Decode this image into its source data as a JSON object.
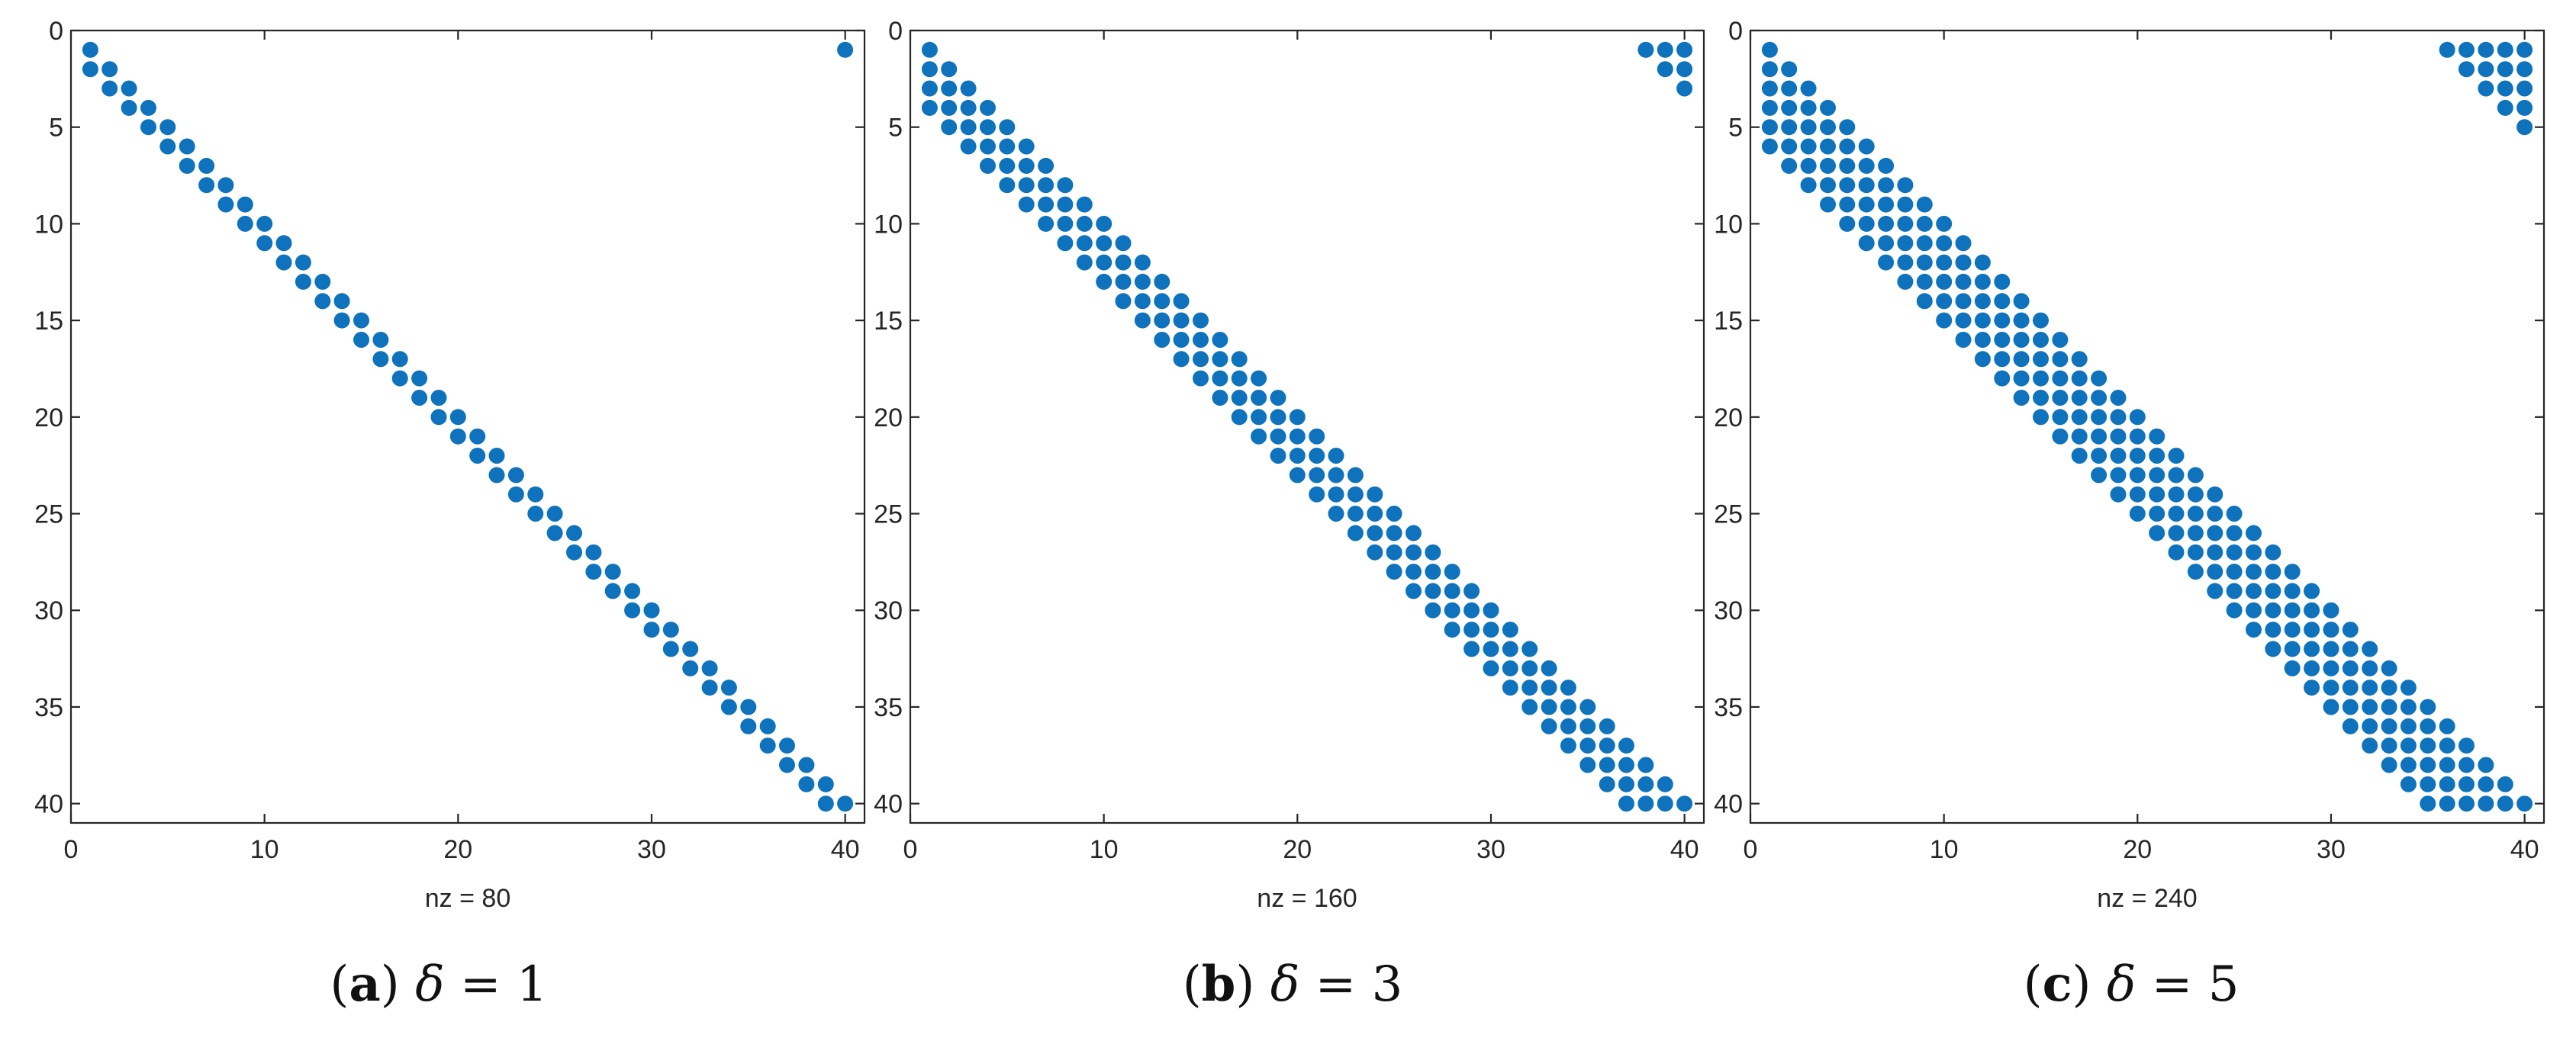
{
  "chart_data": [
    {
      "type": "scatter",
      "title": "",
      "xlabel": "nz = 80",
      "ylabel": "",
      "xlim": [
        0,
        41
      ],
      "ylim": [
        0,
        41
      ],
      "y_reversed": true,
      "xticks": [
        0,
        10,
        20,
        30,
        40
      ],
      "yticks": [
        0,
        5,
        10,
        15,
        20,
        25,
        30,
        35,
        40
      ],
      "delta": 1,
      "n": 40,
      "nz": 80,
      "caption": {
        "letter": "a",
        "symbol": "δ",
        "rest": " = 1"
      }
    },
    {
      "type": "scatter",
      "title": "",
      "xlabel": "nz = 160",
      "ylabel": "",
      "xlim": [
        0,
        41
      ],
      "ylim": [
        0,
        41
      ],
      "y_reversed": true,
      "xticks": [
        0,
        10,
        20,
        30,
        40
      ],
      "yticks": [
        0,
        5,
        10,
        15,
        20,
        25,
        30,
        35,
        40
      ],
      "delta": 3,
      "n": 40,
      "nz": 160,
      "caption": {
        "letter": "b",
        "symbol": "δ",
        "rest": " = 3"
      }
    },
    {
      "type": "scatter",
      "title": "",
      "xlabel": "nz = 240",
      "ylabel": "",
      "xlim": [
        0,
        41
      ],
      "ylim": [
        0,
        41
      ],
      "y_reversed": true,
      "xticks": [
        0,
        10,
        20,
        30,
        40
      ],
      "yticks": [
        0,
        5,
        10,
        15,
        20,
        25,
        30,
        35,
        40
      ],
      "delta": 5,
      "n": 40,
      "nz": 240,
      "caption": {
        "letter": "c",
        "symbol": "δ",
        "rest": " = 5"
      }
    }
  ],
  "colors": {
    "marker": "#0e72bd",
    "axis": "#262626",
    "background": "#ffffff"
  }
}
